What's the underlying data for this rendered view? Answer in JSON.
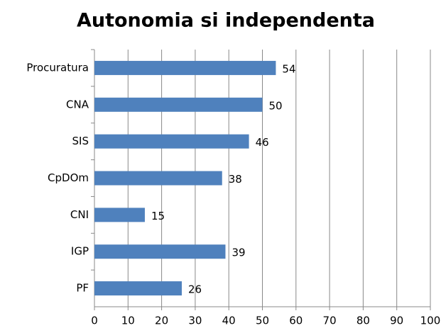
{
  "chart_data": {
    "type": "bar",
    "orientation": "horizontal",
    "title": "Autonomia si independenta",
    "categories": [
      "Procuratura",
      "CNA",
      "SIS",
      "CpDOm",
      "CNI",
      "IGP",
      "PF"
    ],
    "values": [
      54,
      50,
      46,
      38,
      15,
      39,
      26
    ],
    "color": "#4f81bd",
    "xlim": [
      0,
      100
    ],
    "xticks": [
      0,
      10,
      20,
      30,
      40,
      50,
      60,
      70,
      80,
      90,
      100
    ],
    "grid": true,
    "data_labels": true
  }
}
